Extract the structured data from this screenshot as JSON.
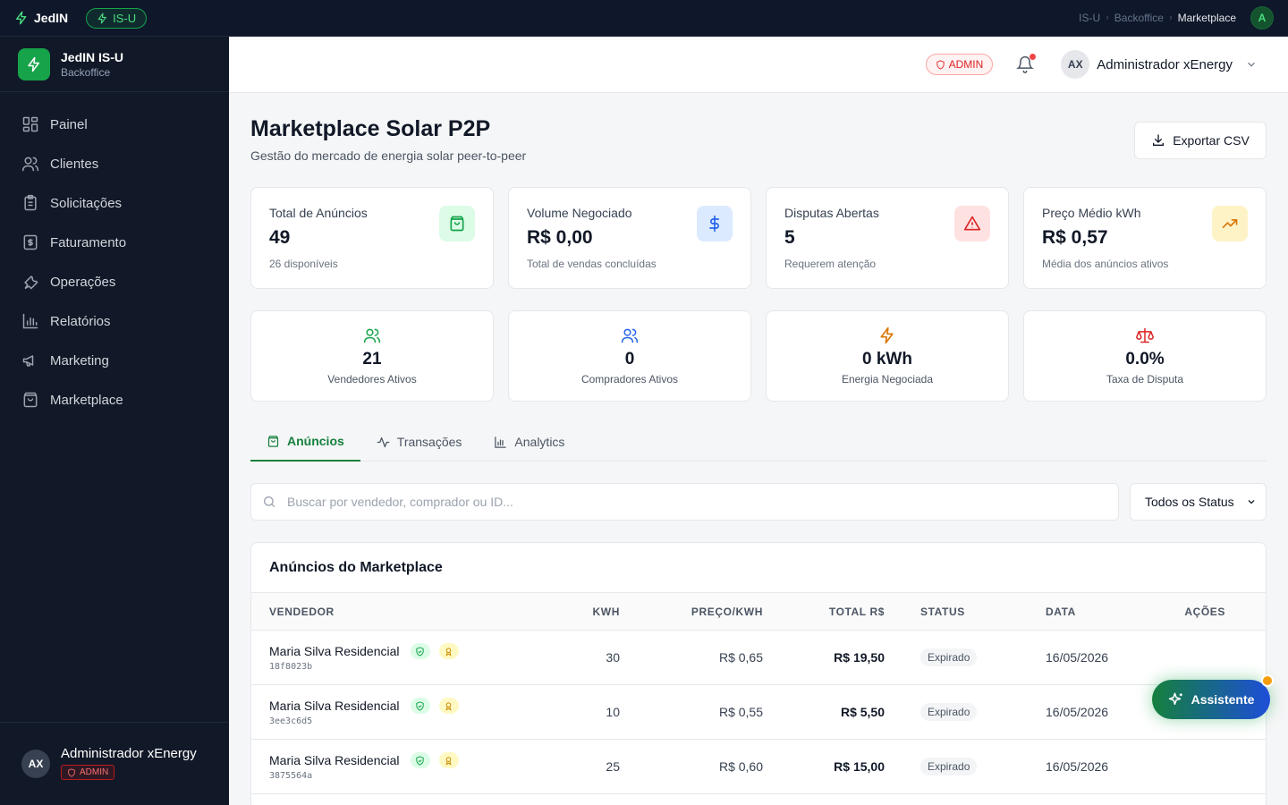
{
  "topbar": {
    "logo": "JedIN",
    "env": "IS-U",
    "breadcrumb": [
      "IS-U",
      "Backoffice",
      "Marketplace"
    ],
    "avatar_initial": "A"
  },
  "sidebar": {
    "brand_title": "JedIN IS-U",
    "brand_sub": "Backoffice",
    "items": [
      {
        "label": "Painel",
        "icon": "dashboard-icon"
      },
      {
        "label": "Clientes",
        "icon": "users-icon"
      },
      {
        "label": "Solicitações",
        "icon": "clipboard-icon"
      },
      {
        "label": "Faturamento",
        "icon": "receipt-icon"
      },
      {
        "label": "Operações",
        "icon": "wrench-icon"
      },
      {
        "label": "Relatórios",
        "icon": "bar-chart-icon"
      },
      {
        "label": "Marketing",
        "icon": "megaphone-icon"
      },
      {
        "label": "Marketplace",
        "icon": "shopping-bag-icon"
      }
    ],
    "user": {
      "initials": "AX",
      "name": "Administrador xEnergy",
      "role": "ADMIN"
    }
  },
  "header": {
    "role": "ADMIN",
    "user_initials": "AX",
    "user_name": "Administrador xEnergy"
  },
  "page": {
    "title": "Marketplace Solar P2P",
    "subtitle": "Gestão do mercado de energia solar peer-to-peer",
    "export_label": "Exportar CSV"
  },
  "stats": [
    {
      "label": "Total de Anúncios",
      "value": "49",
      "hint": "26 disponíveis",
      "icon": "shopping-bag-icon",
      "color": "#16a34a"
    },
    {
      "label": "Volume Negociado",
      "value": "R$ 0,00",
      "hint": "Total de vendas concluídas",
      "icon": "dollar-icon",
      "color": "#2563eb"
    },
    {
      "label": "Disputas Abertas",
      "value": "5",
      "hint": "Requerem atenção",
      "icon": "alert-triangle-icon",
      "color": "#dc2626"
    },
    {
      "label": "Preço Médio kWh",
      "value": "R$ 0,57",
      "hint": "Média dos anúncios ativos",
      "icon": "trending-up-icon",
      "color": "#d97706"
    }
  ],
  "mini_stats": [
    {
      "value": "21",
      "label": "Vendedores Ativos",
      "icon": "users-icon",
      "color": "#16a34a"
    },
    {
      "value": "0",
      "label": "Compradores Ativos",
      "icon": "users-icon",
      "color": "#2563eb"
    },
    {
      "value": "0 kWh",
      "label": "Energia Negociada",
      "icon": "bolt-icon",
      "color": "#d97706"
    },
    {
      "value": "0.0%",
      "label": "Taxa de Disputa",
      "icon": "scale-icon",
      "color": "#dc2626"
    }
  ],
  "tabs": [
    {
      "label": "Anúncios",
      "active": true
    },
    {
      "label": "Transações",
      "active": false
    },
    {
      "label": "Analytics",
      "active": false
    }
  ],
  "search": {
    "placeholder": "Buscar por vendedor, comprador ou ID..."
  },
  "status_filter": {
    "selected": "Todos os Status"
  },
  "table": {
    "title": "Anúncios do Marketplace",
    "columns": [
      "VENDEDOR",
      "KWH",
      "PREÇO/KWH",
      "TOTAL R$",
      "STATUS",
      "DATA",
      "AÇÕES"
    ],
    "rows": [
      {
        "vendor": "Maria Silva Residencial",
        "id": "18f8023b",
        "kwh": "30",
        "price": "R$ 0,65",
        "total": "R$ 19,50",
        "status": "Expirado",
        "date": "16/05/2026"
      },
      {
        "vendor": "Maria Silva Residencial",
        "id": "3ee3c6d5",
        "kwh": "10",
        "price": "R$ 0,55",
        "total": "R$ 5,50",
        "status": "Expirado",
        "date": "16/05/2026"
      },
      {
        "vendor": "Maria Silva Residencial",
        "id": "3875564a",
        "kwh": "25",
        "price": "R$ 0,60",
        "total": "R$ 15,00",
        "status": "Expirado",
        "date": "16/05/2026"
      }
    ]
  },
  "assistant": {
    "label": "Assistente"
  }
}
